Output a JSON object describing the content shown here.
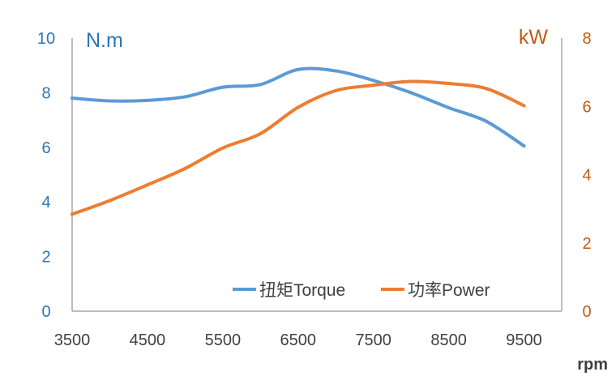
{
  "chart_data": {
    "type": "line",
    "x": [
      3500,
      4000,
      4500,
      5000,
      5500,
      6000,
      6500,
      7000,
      7500,
      8000,
      8500,
      9000,
      9500
    ],
    "x_ticks": [
      "3500",
      "4500",
      "5500",
      "6500",
      "7500",
      "8500",
      "9500"
    ],
    "xlim": [
      3500,
      10000
    ],
    "xlabel": "rpm",
    "y_left": {
      "unit": "N.m",
      "ylim": [
        0,
        10
      ],
      "ticks": [
        "0",
        "2",
        "4",
        "6",
        "8",
        "10"
      ]
    },
    "y_right": {
      "unit": "kW",
      "ylim": [
        0,
        8
      ],
      "ticks": [
        "0",
        "2",
        "4",
        "6",
        "8"
      ]
    },
    "series": [
      {
        "name": "扭矩Torque",
        "axis": "left",
        "color": "#5B9BD5",
        "values": [
          7.8,
          7.7,
          7.72,
          7.85,
          8.2,
          8.3,
          8.85,
          8.8,
          8.45,
          8.0,
          7.45,
          6.95,
          6.05
        ]
      },
      {
        "name": "功率Power",
        "axis": "right",
        "color": "#ED7D31",
        "values": [
          2.84,
          3.24,
          3.7,
          4.18,
          4.78,
          5.2,
          5.97,
          6.46,
          6.62,
          6.73,
          6.67,
          6.52,
          6.02
        ]
      }
    ],
    "legend": "bottom-right",
    "grid": false
  },
  "colors": {
    "left_axis": "#2E75B6",
    "right_axis": "#C55A11",
    "axis_line": "#A6A6A6"
  }
}
